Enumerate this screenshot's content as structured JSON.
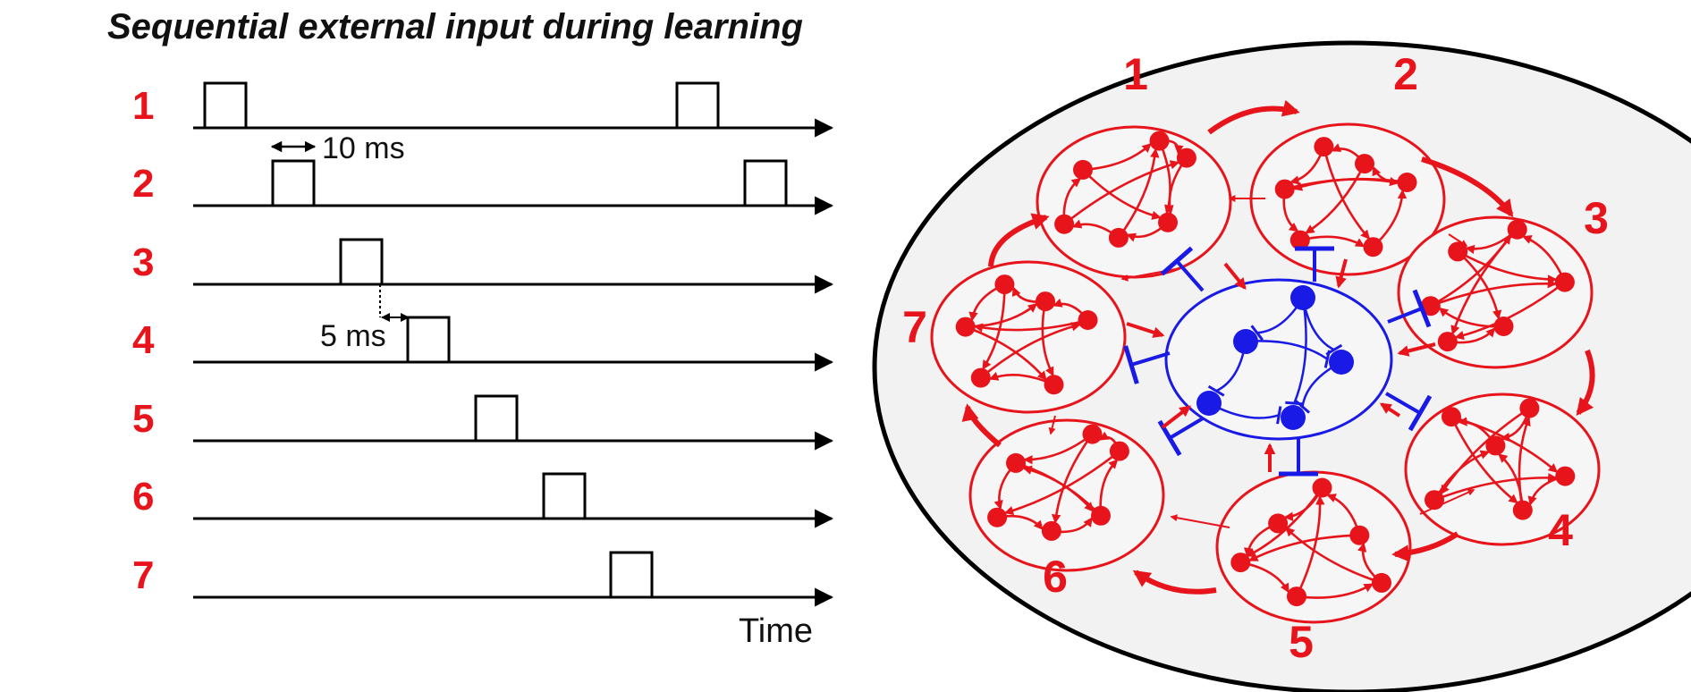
{
  "title": "Sequential external input during learning",
  "rows": [
    "1",
    "2",
    "3",
    "4",
    "5",
    "6",
    "7"
  ],
  "pulse_width_label": "10 ms",
  "gap_label": "5 ms",
  "time_label": "Time",
  "clusters": [
    "1",
    "2",
    "3",
    "4",
    "5",
    "6",
    "7"
  ],
  "colors": {
    "excitatory": "#e8141b",
    "inhibitory": "#1a1ae6",
    "network_fill": "#f2f2f2",
    "cluster_fill": "#f6f6f6",
    "line": "#000000"
  }
}
